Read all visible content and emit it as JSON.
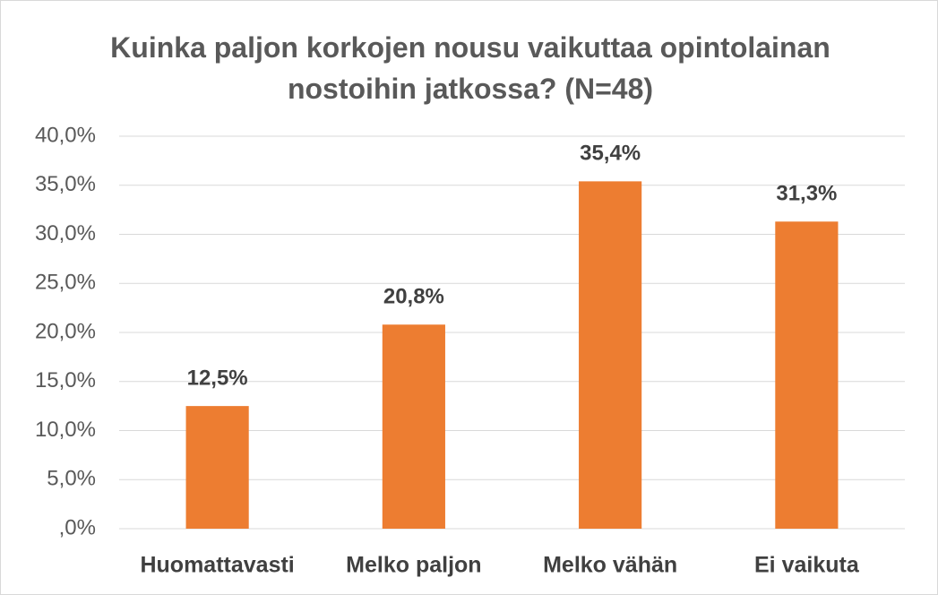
{
  "chart_data": {
    "type": "bar",
    "title": "Kuinka paljon korkojen nousu vaikuttaa opintolainan nostoihin jatkossa? (N=48)",
    "categories": [
      "Huomattavasti",
      "Melko paljon",
      "Melko vähän",
      "Ei vaikuta"
    ],
    "values": [
      12.5,
      20.8,
      35.4,
      31.3
    ],
    "value_labels": [
      "12,5%",
      "20,8%",
      "35,4%",
      "31,3%"
    ],
    "color": "#ed7d31",
    "ylim": [
      0,
      40
    ],
    "yticks": [
      {
        "value": 0,
        "label": ",0%"
      },
      {
        "value": 5,
        "label": "5,0%"
      },
      {
        "value": 10,
        "label": "10,0%"
      },
      {
        "value": 15,
        "label": "15,0%"
      },
      {
        "value": 20,
        "label": "20,0%"
      },
      {
        "value": 25,
        "label": "25,0%"
      },
      {
        "value": 30,
        "label": "30,0%"
      },
      {
        "value": 35,
        "label": "35,0%"
      },
      {
        "value": 40,
        "label": "40,0%"
      }
    ],
    "grid": true
  }
}
